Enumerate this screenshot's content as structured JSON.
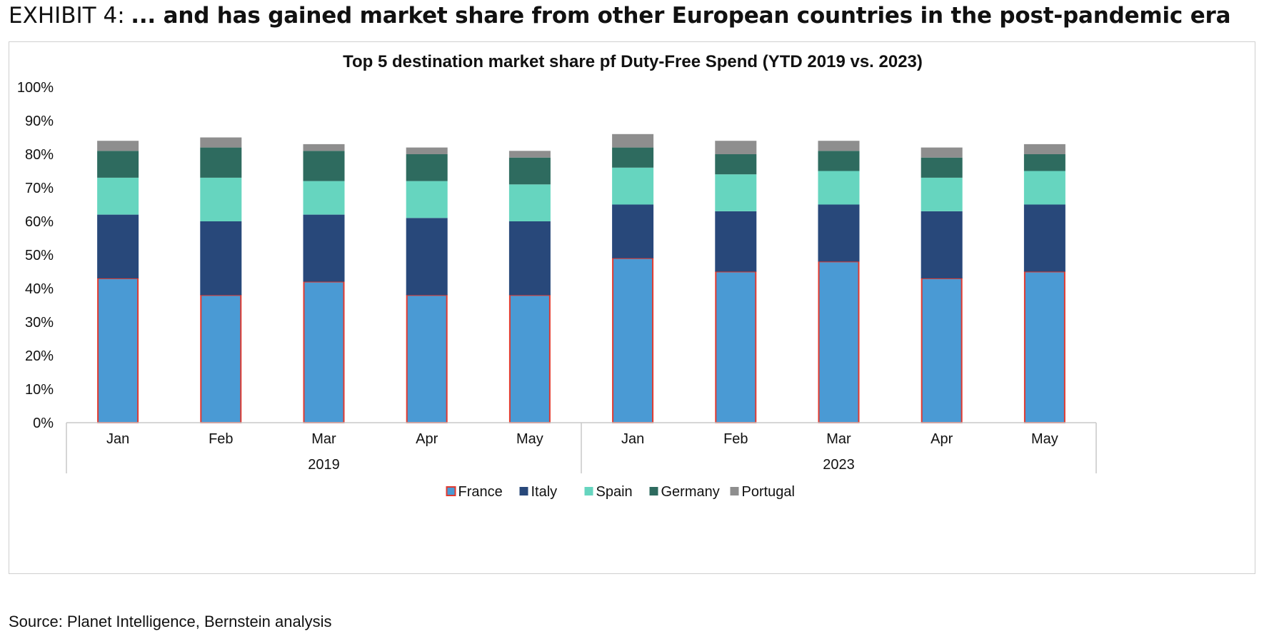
{
  "header": {
    "exhibit_label": "EXHIBIT 4:",
    "headline": "... and has gained market share from other European countries in the post-pandemic era"
  },
  "source": "Source: Planet Intelligence, Bernstein analysis",
  "colors": {
    "France": "#4a9ad4",
    "France_border": "#e03a30",
    "Italy": "#28487a",
    "Spain": "#66d5bf",
    "Germany": "#2e6b5f",
    "Portugal": "#8e8e8e"
  },
  "chart_data": {
    "type": "bar",
    "stacked": true,
    "title": "Top 5 destination market share pf Duty-Free Spend (YTD 2019 vs. 2023)",
    "categories": [
      "Jan",
      "Feb",
      "Mar",
      "Apr",
      "May",
      "Jan",
      "Feb",
      "Mar",
      "Apr",
      "May"
    ],
    "groups": [
      {
        "label": "2019",
        "start": 0,
        "end": 4
      },
      {
        "label": "2023",
        "start": 5,
        "end": 9
      }
    ],
    "yticks": [
      "0%",
      "10%",
      "20%",
      "30%",
      "40%",
      "50%",
      "60%",
      "70%",
      "80%",
      "90%",
      "100%"
    ],
    "ylim": [
      0,
      100
    ],
    "legend_position": "bottom",
    "series": [
      {
        "name": "France",
        "values": [
          43,
          38,
          42,
          38,
          38,
          49,
          45,
          48,
          43,
          45
        ]
      },
      {
        "name": "Italy",
        "values": [
          19,
          22,
          20,
          23,
          22,
          16,
          18,
          17,
          20,
          20
        ]
      },
      {
        "name": "Spain",
        "values": [
          11,
          13,
          10,
          11,
          11,
          11,
          11,
          10,
          10,
          10
        ]
      },
      {
        "name": "Germany",
        "values": [
          8,
          9,
          9,
          8,
          8,
          6,
          6,
          6,
          6,
          5
        ]
      },
      {
        "name": "Portugal",
        "values": [
          3,
          3,
          2,
          2,
          2,
          4,
          4,
          3,
          3,
          3
        ]
      }
    ]
  }
}
